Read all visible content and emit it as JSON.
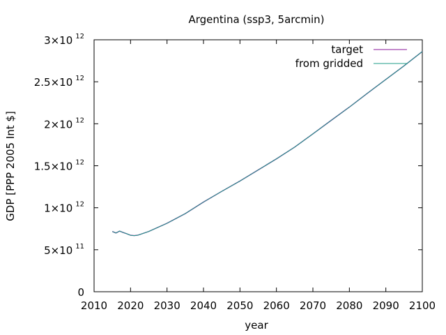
{
  "chart_data": {
    "type": "line",
    "title": "Argentina (ssp3, 5arcmin)",
    "xlabel": "year",
    "ylabel": "GDP [PPP 2005 Int $]",
    "xlim": [
      2010,
      2100
    ],
    "ylim": [
      0,
      3000000000000
    ],
    "xticks": [
      "2010",
      "2020",
      "2030",
      "2040",
      "2050",
      "2060",
      "2070",
      "2080",
      "2090",
      "2100"
    ],
    "yticks": [
      {
        "value": 0,
        "mantissa": "0",
        "exp": ""
      },
      {
        "value": 500000000000,
        "mantissa": "5×10",
        "exp": "11"
      },
      {
        "value": 1000000000000,
        "mantissa": "1×10",
        "exp": "12"
      },
      {
        "value": 1500000000000,
        "mantissa": "1.5×10",
        "exp": "12"
      },
      {
        "value": 2000000000000,
        "mantissa": "2×10",
        "exp": "12"
      },
      {
        "value": 2500000000000,
        "mantissa": "2.5×10",
        "exp": "12"
      },
      {
        "value": 3000000000000,
        "mantissa": "3×10",
        "exp": "12"
      }
    ],
    "grid": false,
    "legend_position": "top-right",
    "x": [
      2015,
      2016,
      2017,
      2018,
      2019,
      2020,
      2021,
      2022,
      2025,
      2030,
      2035,
      2040,
      2045,
      2050,
      2055,
      2060,
      2065,
      2070,
      2075,
      2080,
      2085,
      2090,
      2095,
      2100
    ],
    "series": [
      {
        "name": "target",
        "color": "#8b1a9b",
        "values": [
          717000000000,
          700000000000,
          722000000000,
          705000000000,
          690000000000,
          672000000000,
          668000000000,
          673000000000,
          718000000000,
          815000000000,
          930000000000,
          1068000000000,
          1195000000000,
          1318000000000,
          1450000000000,
          1582000000000,
          1722000000000,
          1880000000000,
          2040000000000,
          2198000000000,
          2365000000000,
          2528000000000,
          2690000000000,
          2860000000000
        ]
      },
      {
        "name": "from gridded",
        "color": "#1f9e89",
        "values": [
          717000000000,
          700000000000,
          722000000000,
          705000000000,
          690000000000,
          672000000000,
          668000000000,
          673000000000,
          718000000000,
          815000000000,
          930000000000,
          1068000000000,
          1195000000000,
          1318000000000,
          1450000000000,
          1582000000000,
          1722000000000,
          1880000000000,
          2040000000000,
          2198000000000,
          2365000000000,
          2528000000000,
          2690000000000,
          2860000000000
        ]
      }
    ]
  }
}
